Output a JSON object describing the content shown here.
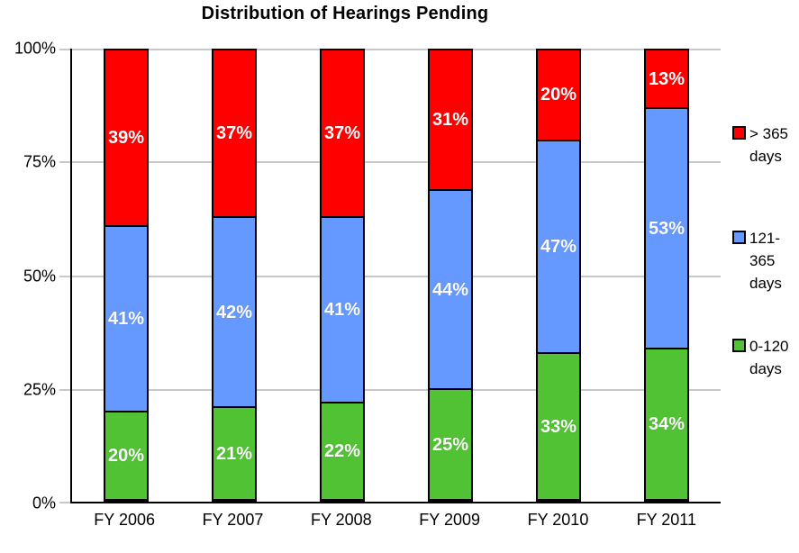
{
  "chart_data": {
    "type": "bar",
    "stacked": true,
    "title": "Distribution of Hearings Pending",
    "categories": [
      "FY 2006",
      "FY 2007",
      "FY 2008",
      "FY 2009",
      "FY 2010",
      "FY 2011"
    ],
    "series": [
      {
        "name": "0-120 days",
        "color": "#50c233",
        "values": [
          20,
          21,
          22,
          25,
          33,
          34
        ]
      },
      {
        "name": "121-365 days",
        "color": "#6699ff",
        "values": [
          41,
          42,
          41,
          44,
          47,
          53
        ]
      },
      {
        "name": "> 365 days",
        "color": "#fe0000",
        "values": [
          39,
          37,
          37,
          31,
          20,
          13
        ]
      }
    ],
    "value_label_suffix": "%",
    "ylim": [
      0,
      100
    ],
    "yticks": [
      {
        "pct": 0,
        "label": "0%"
      },
      {
        "pct": 25,
        "label": "25%"
      },
      {
        "pct": 50,
        "label": "50%"
      },
      {
        "pct": 75,
        "label": "75%"
      },
      {
        "pct": 100,
        "label": "100%"
      }
    ],
    "grid": "horizontal",
    "legend_position": "right"
  },
  "legend": {
    "items": [
      {
        "series": "> 365 days",
        "color": "#fe0000",
        "lines": [
          "> 365",
          "days"
        ]
      },
      {
        "series": "121-365 days",
        "color": "#6699ff",
        "lines": [
          "121-",
          "365",
          "days"
        ]
      },
      {
        "series": "0-120 days",
        "color": "#50c233",
        "lines": [
          "0-120",
          "days"
        ]
      }
    ]
  },
  "colors": {
    "background": "#ffffff",
    "axis": "#000000",
    "gridline": "#c8c8c8",
    "bar_border": "#000000",
    "data_label_text": "#ffffff",
    "red": "#fe0000",
    "blue": "#6699ff",
    "green": "#50c233"
  }
}
